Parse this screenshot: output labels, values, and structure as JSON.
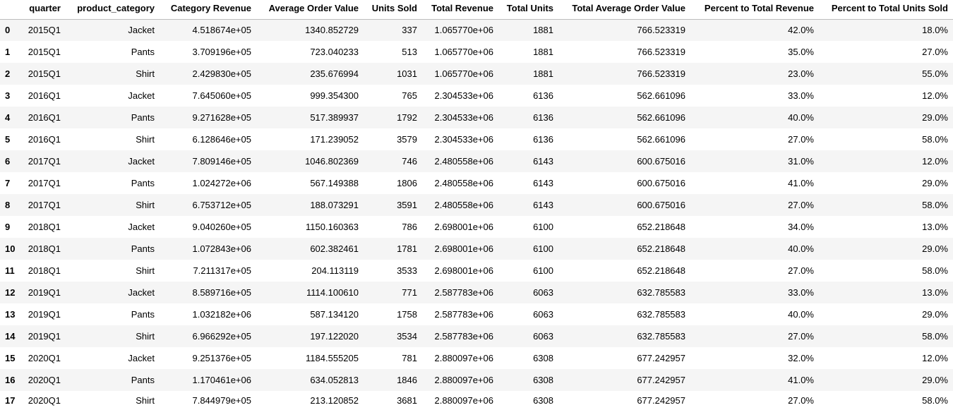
{
  "table": {
    "columns": [
      "",
      "quarter",
      "product_category",
      "Category Revenue",
      "Average Order Value",
      "Units Sold",
      "Total Revenue",
      "Total Units",
      "Total Average Order Value",
      "Percent to Total Revenue",
      "Percent to Total Units Sold"
    ],
    "rows": [
      [
        "0",
        "2015Q1",
        "Jacket",
        "4.518674e+05",
        "1340.852729",
        "337",
        "1.065770e+06",
        "1881",
        "766.523319",
        "42.0%",
        "18.0%"
      ],
      [
        "1",
        "2015Q1",
        "Pants",
        "3.709196e+05",
        "723.040233",
        "513",
        "1.065770e+06",
        "1881",
        "766.523319",
        "35.0%",
        "27.0%"
      ],
      [
        "2",
        "2015Q1",
        "Shirt",
        "2.429830e+05",
        "235.676994",
        "1031",
        "1.065770e+06",
        "1881",
        "766.523319",
        "23.0%",
        "55.0%"
      ],
      [
        "3",
        "2016Q1",
        "Jacket",
        "7.645060e+05",
        "999.354300",
        "765",
        "2.304533e+06",
        "6136",
        "562.661096",
        "33.0%",
        "12.0%"
      ],
      [
        "4",
        "2016Q1",
        "Pants",
        "9.271628e+05",
        "517.389937",
        "1792",
        "2.304533e+06",
        "6136",
        "562.661096",
        "40.0%",
        "29.0%"
      ],
      [
        "5",
        "2016Q1",
        "Shirt",
        "6.128646e+05",
        "171.239052",
        "3579",
        "2.304533e+06",
        "6136",
        "562.661096",
        "27.0%",
        "58.0%"
      ],
      [
        "6",
        "2017Q1",
        "Jacket",
        "7.809146e+05",
        "1046.802369",
        "746",
        "2.480558e+06",
        "6143",
        "600.675016",
        "31.0%",
        "12.0%"
      ],
      [
        "7",
        "2017Q1",
        "Pants",
        "1.024272e+06",
        "567.149388",
        "1806",
        "2.480558e+06",
        "6143",
        "600.675016",
        "41.0%",
        "29.0%"
      ],
      [
        "8",
        "2017Q1",
        "Shirt",
        "6.753712e+05",
        "188.073291",
        "3591",
        "2.480558e+06",
        "6143",
        "600.675016",
        "27.0%",
        "58.0%"
      ],
      [
        "9",
        "2018Q1",
        "Jacket",
        "9.040260e+05",
        "1150.160363",
        "786",
        "2.698001e+06",
        "6100",
        "652.218648",
        "34.0%",
        "13.0%"
      ],
      [
        "10",
        "2018Q1",
        "Pants",
        "1.072843e+06",
        "602.382461",
        "1781",
        "2.698001e+06",
        "6100",
        "652.218648",
        "40.0%",
        "29.0%"
      ],
      [
        "11",
        "2018Q1",
        "Shirt",
        "7.211317e+05",
        "204.113119",
        "3533",
        "2.698001e+06",
        "6100",
        "652.218648",
        "27.0%",
        "58.0%"
      ],
      [
        "12",
        "2019Q1",
        "Jacket",
        "8.589716e+05",
        "1114.100610",
        "771",
        "2.587783e+06",
        "6063",
        "632.785583",
        "33.0%",
        "13.0%"
      ],
      [
        "13",
        "2019Q1",
        "Pants",
        "1.032182e+06",
        "587.134120",
        "1758",
        "2.587783e+06",
        "6063",
        "632.785583",
        "40.0%",
        "29.0%"
      ],
      [
        "14",
        "2019Q1",
        "Shirt",
        "6.966292e+05",
        "197.122020",
        "3534",
        "2.587783e+06",
        "6063",
        "632.785583",
        "27.0%",
        "58.0%"
      ],
      [
        "15",
        "2020Q1",
        "Jacket",
        "9.251376e+05",
        "1184.555205",
        "781",
        "2.880097e+06",
        "6308",
        "677.242957",
        "32.0%",
        "12.0%"
      ],
      [
        "16",
        "2020Q1",
        "Pants",
        "1.170461e+06",
        "634.052813",
        "1846",
        "2.880097e+06",
        "6308",
        "677.242957",
        "41.0%",
        "29.0%"
      ],
      [
        "17",
        "2020Q1",
        "Shirt",
        "7.844979e+05",
        "213.120852",
        "3681",
        "2.880097e+06",
        "6308",
        "677.242957",
        "27.0%",
        "58.0%"
      ]
    ]
  }
}
